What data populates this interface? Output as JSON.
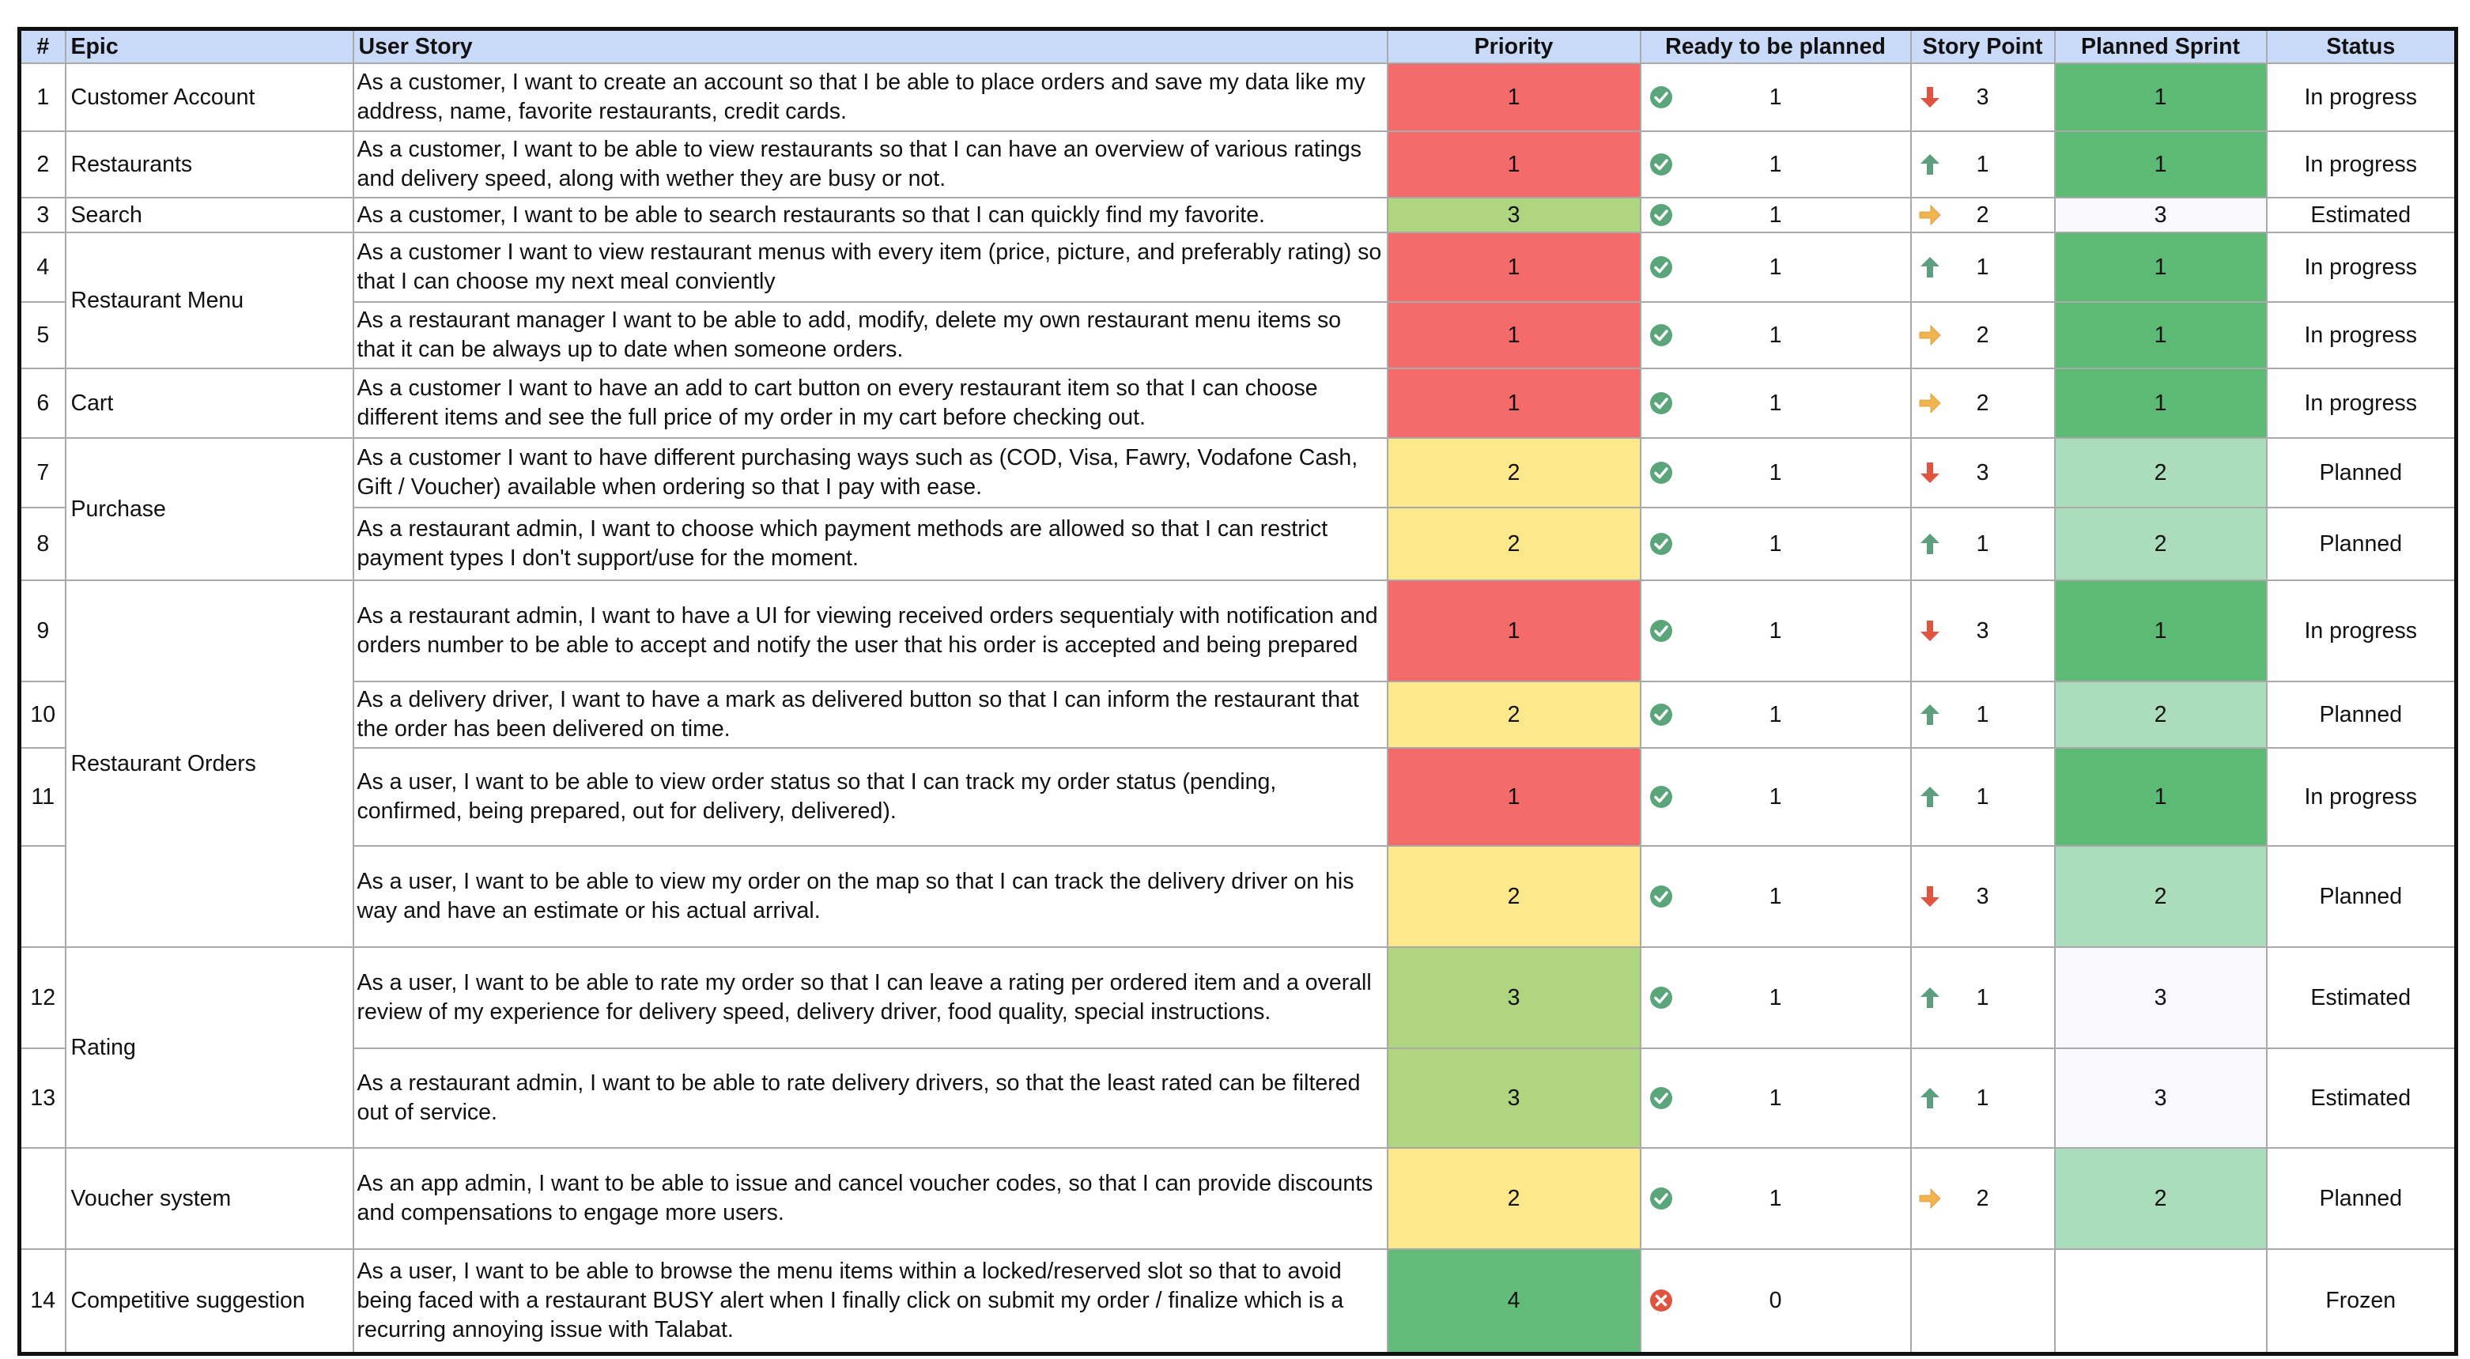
{
  "header": [
    "#",
    "Epic",
    "User Story",
    "Priority",
    "Ready to be planned",
    "Story Point",
    "Planned Sprint",
    "Status"
  ],
  "priority_colors": {
    "1": "#f56a6b",
    "2": "#fde98b",
    "3": "#b0d580",
    "4": "#63bb7a"
  },
  "sprint_colors": {
    "1": "#5dba75",
    "2": "#abdcbb",
    "3": "#f8f8fd"
  },
  "ready_icons": {
    "1": "check",
    "0": "cross"
  },
  "story_point_icons": {
    "1": "up",
    "2": "right",
    "3": "down"
  },
  "epics": [
    {
      "name": "Customer Account",
      "stories": [
        {
          "number": 1,
          "story": "As a customer, I want to create an account so that I be able to place orders and save my data like my address, name, favorite restaurants, credit cards.",
          "priority": 1,
          "ready": 1,
          "story_point": 3,
          "sprint": 1,
          "status": "In progress"
        }
      ]
    },
    {
      "name": "Restaurants",
      "stories": [
        {
          "number": 2,
          "story": "As a customer, I want to be able to view restaurants so that I can have an overview of various ratings and delivery speed, along with wether they are busy or not.",
          "priority": 1,
          "ready": 1,
          "story_point": 1,
          "sprint": 1,
          "status": "In progress"
        }
      ]
    },
    {
      "name": "Search",
      "stories": [
        {
          "number": 3,
          "story": "As a customer, I want to be able to search restaurants so that I can quickly find my favorite.",
          "priority": 3,
          "ready": 1,
          "story_point": 2,
          "sprint": 3,
          "status": "Estimated"
        }
      ]
    },
    {
      "name": "Restaurant Menu",
      "stories": [
        {
          "number": 4,
          "story": "As a customer I want to view restaurant menus with every item (price, picture, and preferably rating) so that I can choose my next meal conviently",
          "priority": 1,
          "ready": 1,
          "story_point": 1,
          "sprint": 1,
          "status": "In progress"
        },
        {
          "number": 5,
          "story": "As a restaurant manager I want to be able to add, modify, delete my own restaurant menu items so that it can be always up to date when someone orders.",
          "priority": 1,
          "ready": 1,
          "story_point": 2,
          "sprint": 1,
          "status": "In progress"
        }
      ]
    },
    {
      "name": "Cart",
      "stories": [
        {
          "number": 6,
          "story": "As a customer I want to have an add to cart button on every restaurant item so that I can choose different items and see the full price of my order in my cart before checking out.",
          "priority": 1,
          "ready": 1,
          "story_point": 2,
          "sprint": 1,
          "status": "In progress"
        }
      ]
    },
    {
      "name": "Purchase",
      "stories": [
        {
          "number": 7,
          "story": "As a customer I want to have different purchasing ways such as (COD, Visa, Fawry, Vodafone Cash, Gift / Voucher) available when ordering so that I pay with ease.",
          "priority": 2,
          "ready": 1,
          "story_point": 3,
          "sprint": 2,
          "status": "Planned"
        },
        {
          "number": 8,
          "story": "As a restaurant admin, I want to choose which payment methods are allowed so that I can restrict payment types I don't support/use for the moment.",
          "priority": 2,
          "ready": 1,
          "story_point": 1,
          "sprint": 2,
          "status": "Planned"
        }
      ]
    },
    {
      "name": "Restaurant Orders",
      "stories": [
        {
          "number": 9,
          "story": "As a restaurant admin, I want to have a UI for viewing received orders sequentialy with notification and orders number to be able to accept and notify the user that his order is accepted and being prepared",
          "priority": 1,
          "ready": 1,
          "story_point": 3,
          "sprint": 1,
          "status": "In progress"
        },
        {
          "number": 10,
          "story": "As a delivery driver, I want to have a mark as delivered button so that I can inform the restaurant that the order has been delivered on time.",
          "priority": 2,
          "ready": 1,
          "story_point": 1,
          "sprint": 2,
          "status": "Planned"
        },
        {
          "number": 11,
          "story": "As a user, I want to be able to view order status so that I can track my order status (pending, confirmed, being prepared, out for delivery, delivered).",
          "priority": 1,
          "ready": 1,
          "story_point": 1,
          "sprint": 1,
          "status": "In progress"
        },
        {
          "number": null,
          "story": "As a user, I want to be able to view my order on the map so that I can track the delivery driver on his way and have an estimate or his actual arrival.",
          "priority": 2,
          "ready": 1,
          "story_point": 3,
          "sprint": 2,
          "status": "Planned"
        }
      ]
    },
    {
      "name": "Rating",
      "stories": [
        {
          "number": 12,
          "story": "As a user, I want to be able to rate my order so that I can leave a rating per ordered item and a overall review of my experience for delivery speed, delivery driver, food quality, special instructions.",
          "priority": 3,
          "ready": 1,
          "story_point": 1,
          "sprint": 3,
          "status": "Estimated"
        },
        {
          "number": 13,
          "story": "As a restaurant admin, I want to be able to rate delivery drivers, so that the least rated can be filtered out of service.",
          "priority": 3,
          "ready": 1,
          "story_point": 1,
          "sprint": 3,
          "status": "Estimated"
        }
      ]
    },
    {
      "name": "Voucher system",
      "stories": [
        {
          "number": null,
          "story": "As an app admin, I want to be able to issue and cancel voucher codes, so that I can provide discounts and compensations to engage more users.",
          "priority": 2,
          "ready": 1,
          "story_point": 2,
          "sprint": 2,
          "status": "Planned"
        }
      ]
    },
    {
      "name": "Competitive suggestion",
      "stories": [
        {
          "number": 14,
          "story": "As a user, I want to be able to browse the menu items within a locked/reserved slot so that to avoid being faced with a restaurant BUSY alert when I finally click on submit my order / finalize which is a recurring annoying issue with Talabat.",
          "priority": 4,
          "ready": 0,
          "story_point": null,
          "sprint": null,
          "status": "Frozen"
        }
      ]
    }
  ]
}
